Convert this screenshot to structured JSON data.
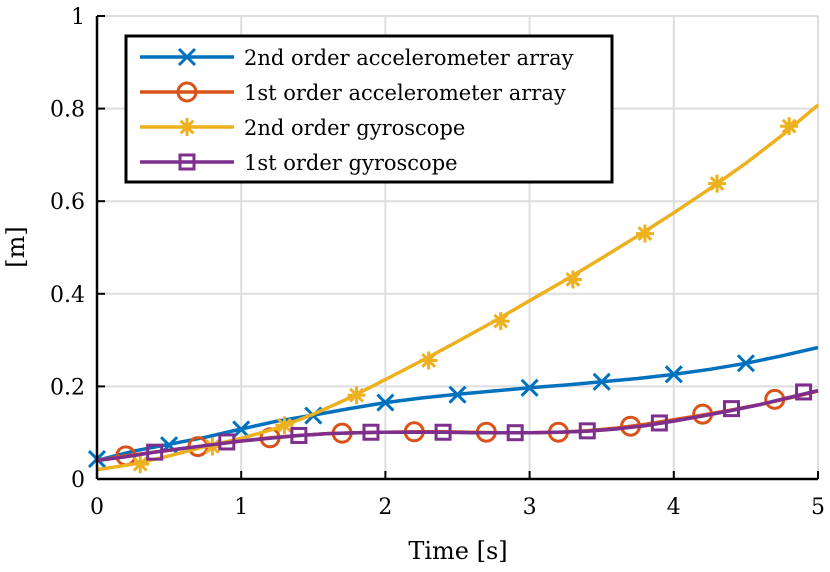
{
  "chart_data": {
    "type": "line",
    "title": "",
    "xlabel": "Time [s]",
    "ylabel": "[m]",
    "xlim": [
      0,
      5
    ],
    "ylim": [
      0,
      1
    ],
    "xticks": [
      "0",
      "1",
      "2",
      "3",
      "4",
      "5"
    ],
    "yticks": [
      "0",
      "0.2",
      "0.4",
      "0.6",
      "0.8",
      "1"
    ],
    "grid": true,
    "legend_position": "top-left",
    "series": [
      {
        "name": "2nd order accelerometer array",
        "color": "#0072BD",
        "marker": "x",
        "curve": [
          [
            0,
            0.04
          ],
          [
            0.25,
            0.06
          ],
          [
            0.5,
            0.075
          ],
          [
            0.75,
            0.09
          ],
          [
            1,
            0.108
          ],
          [
            1.25,
            0.125
          ],
          [
            1.5,
            0.138
          ],
          [
            1.75,
            0.152
          ],
          [
            2,
            0.165
          ],
          [
            2.25,
            0.175
          ],
          [
            2.5,
            0.183
          ],
          [
            2.75,
            0.19
          ],
          [
            3,
            0.197
          ],
          [
            3.25,
            0.203
          ],
          [
            3.5,
            0.21
          ],
          [
            3.75,
            0.217
          ],
          [
            4,
            0.226
          ],
          [
            4.25,
            0.237
          ],
          [
            4.5,
            0.25
          ],
          [
            4.75,
            0.266
          ],
          [
            5,
            0.284
          ]
        ],
        "markers": [
          [
            0,
            0.043
          ],
          [
            0.5,
            0.073
          ],
          [
            1,
            0.107
          ],
          [
            1.5,
            0.137
          ],
          [
            2,
            0.165
          ],
          [
            2.5,
            0.182
          ],
          [
            3,
            0.197
          ],
          [
            3.5,
            0.21
          ],
          [
            4,
            0.226
          ],
          [
            4.5,
            0.25
          ]
        ]
      },
      {
        "name": "1st order accelerometer array",
        "color": "#D95319",
        "marker": "o",
        "curve": [
          [
            0,
            0.04
          ],
          [
            0.2,
            0.05
          ],
          [
            0.4,
            0.058
          ],
          [
            0.6,
            0.066
          ],
          [
            0.8,
            0.074
          ],
          [
            1,
            0.082
          ],
          [
            1.2,
            0.089
          ],
          [
            1.4,
            0.094
          ],
          [
            1.6,
            0.098
          ],
          [
            1.8,
            0.1
          ],
          [
            2,
            0.101
          ],
          [
            2.2,
            0.102
          ],
          [
            2.4,
            0.102
          ],
          [
            2.6,
            0.101
          ],
          [
            2.8,
            0.1
          ],
          [
            3,
            0.1
          ],
          [
            3.2,
            0.101
          ],
          [
            3.4,
            0.104
          ],
          [
            3.6,
            0.11
          ],
          [
            3.8,
            0.118
          ],
          [
            4,
            0.128
          ],
          [
            4.2,
            0.138
          ],
          [
            4.4,
            0.149
          ],
          [
            4.6,
            0.161
          ],
          [
            4.8,
            0.175
          ],
          [
            5,
            0.19
          ]
        ],
        "markers": [
          [
            0.2,
            0.05
          ],
          [
            0.7,
            0.07
          ],
          [
            1.2,
            0.089
          ],
          [
            1.7,
            0.099
          ],
          [
            2.2,
            0.102
          ],
          [
            2.7,
            0.101
          ],
          [
            3.2,
            0.101
          ],
          [
            3.7,
            0.114
          ],
          [
            4.2,
            0.14
          ],
          [
            4.7,
            0.172
          ]
        ]
      },
      {
        "name": "2nd order gyroscope",
        "color": "#EDB120",
        "marker": "*",
        "curve": [
          [
            0,
            0.02
          ],
          [
            0.25,
            0.032
          ],
          [
            0.5,
            0.05
          ],
          [
            0.75,
            0.07
          ],
          [
            1,
            0.088
          ],
          [
            1.25,
            0.11
          ],
          [
            1.5,
            0.14
          ],
          [
            1.75,
            0.175
          ],
          [
            2,
            0.215
          ],
          [
            2.25,
            0.255
          ],
          [
            2.5,
            0.297
          ],
          [
            2.75,
            0.34
          ],
          [
            3,
            0.385
          ],
          [
            3.25,
            0.43
          ],
          [
            3.5,
            0.477
          ],
          [
            3.75,
            0.525
          ],
          [
            4,
            0.575
          ],
          [
            4.25,
            0.627
          ],
          [
            4.5,
            0.682
          ],
          [
            4.75,
            0.742
          ],
          [
            5,
            0.808
          ]
        ],
        "markers": [
          [
            0.3,
            0.032
          ],
          [
            0.8,
            0.07
          ],
          [
            1.3,
            0.116
          ],
          [
            1.8,
            0.181
          ],
          [
            2.3,
            0.256
          ],
          [
            2.8,
            0.341
          ],
          [
            3.3,
            0.431
          ],
          [
            3.8,
            0.53
          ],
          [
            4.3,
            0.638
          ],
          [
            4.8,
            0.762
          ]
        ]
      },
      {
        "name": "1st order gyroscope",
        "color": "#7E2F8E",
        "marker": "s",
        "curve": [
          [
            0,
            0.04
          ],
          [
            0.2,
            0.048
          ],
          [
            0.4,
            0.058
          ],
          [
            0.6,
            0.066
          ],
          [
            0.8,
            0.074
          ],
          [
            1,
            0.082
          ],
          [
            1.2,
            0.088
          ],
          [
            1.4,
            0.094
          ],
          [
            1.6,
            0.098
          ],
          [
            1.8,
            0.1
          ],
          [
            2,
            0.101
          ],
          [
            2.2,
            0.101
          ],
          [
            2.4,
            0.101
          ],
          [
            2.6,
            0.1
          ],
          [
            2.8,
            0.1
          ],
          [
            3,
            0.1
          ],
          [
            3.2,
            0.101
          ],
          [
            3.4,
            0.103
          ],
          [
            3.6,
            0.108
          ],
          [
            3.8,
            0.115
          ],
          [
            4,
            0.125
          ],
          [
            4.2,
            0.136
          ],
          [
            4.4,
            0.148
          ],
          [
            4.6,
            0.161
          ],
          [
            4.8,
            0.176
          ],
          [
            5,
            0.191
          ]
        ],
        "markers": [
          [
            0.4,
            0.058
          ],
          [
            0.9,
            0.08
          ],
          [
            1.4,
            0.094
          ],
          [
            1.9,
            0.101
          ],
          [
            2.4,
            0.101
          ],
          [
            2.9,
            0.1
          ],
          [
            3.4,
            0.104
          ],
          [
            3.9,
            0.121
          ],
          [
            4.4,
            0.152
          ],
          [
            4.9,
            0.188
          ]
        ]
      }
    ]
  }
}
